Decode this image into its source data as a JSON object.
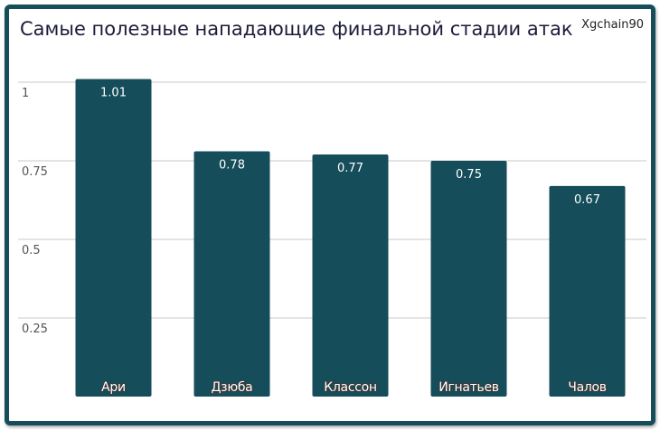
{
  "chart": {
    "title": "Самые полезные нападающие финальной стадии атак",
    "badge": "Xgchain90"
  },
  "colors": {
    "bar": "#154d5b",
    "frame": "#164d5a"
  },
  "chart_data": {
    "type": "bar",
    "title": "Самые полезные нападающие финальной стадии атак",
    "categories": [
      "Ари",
      "Дзюба",
      "Классон",
      "Игнатьев",
      "Чалов"
    ],
    "values": [
      1.01,
      0.78,
      0.77,
      0.75,
      0.67
    ],
    "value_labels": [
      "1.01",
      "0.78",
      "0.77",
      "0.75",
      "0.67"
    ],
    "yticks": [
      0.25,
      0.5,
      0.75,
      1
    ],
    "ytick_labels": [
      "0.25",
      "0.5",
      "0.75",
      "1"
    ],
    "ylim": [
      0,
      1.1
    ],
    "grid": true,
    "legend": "none",
    "xlabel": "",
    "ylabel": ""
  }
}
